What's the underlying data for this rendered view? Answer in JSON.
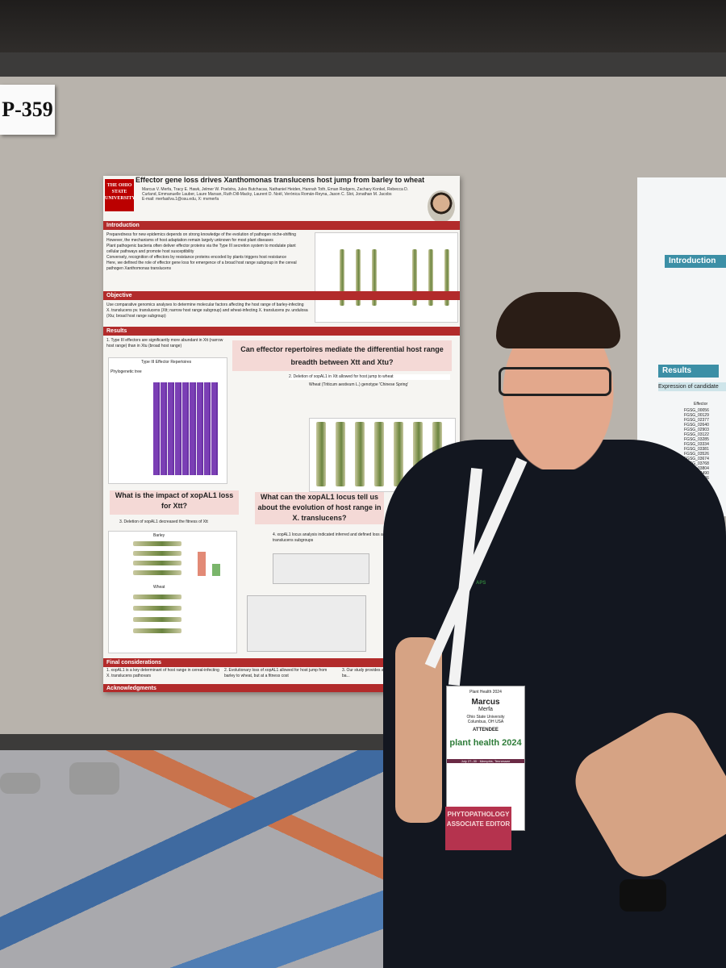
{
  "poster_id": "P-359",
  "poster": {
    "university": "THE OHIO STATE UNIVERSITY",
    "title": "Effector gene loss drives Xanthomonas translucens host jump from barley to wheat",
    "authors": "Marcus V. Merfa, Tracy E. Hawk, Jelmer W. Poelstra, Jules Butchacas, Nathaniel Heiden, Hannah Toth, Ernan Rodgers, Zachary Konkel, Rebecca D. Curland, Emmanuelle Lauber, Laure Marsan, Ruth Dill-Macky, Laurent D. Noël, Verónica Román-Reyna, Jason C. Slot, Jonathan M. Jacobs",
    "email": "E-mail: merfasilva.1@osu.edu, X: mvmerfa",
    "sections": {
      "introduction": "Introduction",
      "objective": "Objective",
      "results": "Results",
      "final": "Final considerations",
      "acknowledgments": "Acknowledgments"
    },
    "intro_text": [
      "Preparedness for new epidemics depends on strong knowledge of the evolution of pathogen niche-shifting",
      "However, the mechanisms of host adaptation remain largely unknown for most plant diseases",
      "Plant pathogenic bacteria often deliver effector proteins via the Type III secretion system to modulate plant cellular pathways and promote host susceptibility",
      "Conversely, recognition of effectors by resistance proteins encoded by plants triggers host resistance",
      "Here, we defined the role of effector gene loss for emergence of a broad host range subgroup in the cereal pathogen Xanthomonas translucens"
    ],
    "objective_text": "Use comparative genomics analyses to determine molecular factors affecting the host range of barley-infecting X. translucens pv. translucens (Xtt; narrow host range subgroup) and wheat-infecting X. translucens pv. undulosa (Xtu; broad host range subgroup)",
    "result1": "1. Type III effectors are significantly more abundant in Xtt (narrow host range) than in Xtu (broad host range)",
    "callout1": "Can effector repertoires mediate the differential host range breadth between Xtt and Xtu?",
    "result2": "2. Deletion of xopAL1 in Xtt allowed for host jump to wheat",
    "callout2": "What is the impact of xopAL1 loss for Xtt?",
    "result3": "3. Deletion of xopAL1 decreased the fitness of Xtt",
    "callout3": "What can the xopAL1 locus tell us about the evolution of host range in X. translucens?",
    "result4": "4. xopAL1 locus analysis indicated inferred and defined loss across X. translucens subgroups",
    "heatmap_title": "Type III Effector Repertoires",
    "tree_label": "Phylogenetic tree",
    "barley_label": "Barley",
    "wheat_label": "Wheat",
    "wheat_genotype": "Wheat (Triticum aestivum L.) genotype 'Chinese Spring'",
    "final1": "1. xopAL1 is a key determinant of host range in cereal-infecting X. translucens pathovars",
    "final2": "2. Evolutionary loss of xopAL1 allowed for host jump from barley to wheat, but at a fitness cost",
    "final3": "3. Our study provides a framework ... pathogens might evolve ba..."
  },
  "poster2": {
    "intro": "Introduction",
    "results": "Results",
    "expression": "Expression of candidate",
    "effector_header": "Effector",
    "effectors": [
      "FGSG_00056",
      "FGSG_00129",
      "FGSG_02377",
      "FGSG_02640",
      "FGSG_02903",
      "FGSG_03122",
      "FGSG_03285",
      "FGSG_03334",
      "FGSG_03381",
      "FGSG_03526",
      "FGSG_03674",
      "FGSG_03768",
      "FGSG_03804",
      "FGSG_04490",
      "FGSG_04646",
      "FGSG_06130",
      "FGSG_06506",
      "FGSG_07772",
      "FGSG_08493"
    ]
  },
  "badge": {
    "event": "Plant Health 2024",
    "first_name": "Marcus",
    "last_name": "Merfa",
    "org": "Ohio State University",
    "city": "Columbus, OH USA",
    "role": "ATTENDEE",
    "logo_text": "plant health 2024",
    "dates": "July 27–30 · Memphis, Tennessee",
    "ribbon": "PHYTOPATHOLOGY ASSOCIATE EDITOR"
  },
  "lanyard_text": "APS",
  "colors": {
    "poster_red": "#b22b2b",
    "heatmap_purple": "#7b3fb5",
    "poster2_teal": "#3c8fa6",
    "board": "#b8b3ac",
    "shirt": "#131720",
    "ribbon": "#b5334e"
  }
}
